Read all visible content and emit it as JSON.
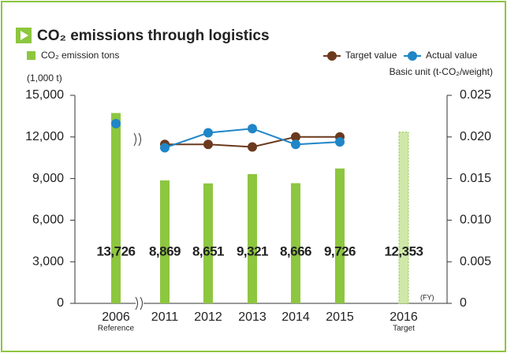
{
  "chart_data": {
    "type": "bar",
    "title": "CO₂ emissions through logistics",
    "bar_legend": "CO₂ emission tons",
    "y_unit": "(1,000 t)",
    "y2_label": "Basic unit (t-CO₂/weight)",
    "x_unit": "(FY)",
    "categories": [
      "2006",
      "2011",
      "2012",
      "2013",
      "2014",
      "2015",
      "2016"
    ],
    "category_notes": [
      "Reference",
      null,
      null,
      null,
      null,
      null,
      "Target"
    ],
    "values": [
      13726,
      8869,
      8651,
      9321,
      8666,
      9726,
      12353
    ],
    "value_labels": [
      "13,726",
      "8,869",
      "8,651",
      "9,321",
      "8,666",
      "9,726",
      "12,353"
    ],
    "bar_colors": [
      "#8dc63f",
      "#8dc63f",
      "#8dc63f",
      "#8dc63f",
      "#8dc63f",
      "#8dc63f",
      "#cfe8a8"
    ],
    "ylim": [
      0,
      15000
    ],
    "yticks": [
      0,
      {
        "value": 3000,
        "label": "3,000"
      },
      {
        "value": 6000,
        "label": "6,000"
      },
      {
        "value": 9000,
        "label": "9,000"
      },
      {
        "value": 12000,
        "label": "12,000"
      },
      {
        "value": 15000,
        "label": "15,000"
      }
    ],
    "y2lim": [
      0,
      0.025
    ],
    "y2ticks": [
      0,
      0.005,
      {
        "value": 0.01,
        "label": "0.010"
      },
      0.015,
      {
        "value": 0.02,
        "label": "0.020"
      },
      0.025
    ],
    "series": [
      {
        "name": "Target value",
        "color": "#6b3a1e",
        "axis": "y2",
        "values": [
          null,
          0.0191,
          0.0191,
          0.0188,
          0.02,
          0.02,
          null
        ]
      },
      {
        "name": "Actual value",
        "color": "#1f86c8",
        "axis": "y2",
        "values": [
          0.0216,
          0.0187,
          0.0205,
          0.021,
          0.0191,
          0.0194,
          null
        ]
      }
    ]
  }
}
